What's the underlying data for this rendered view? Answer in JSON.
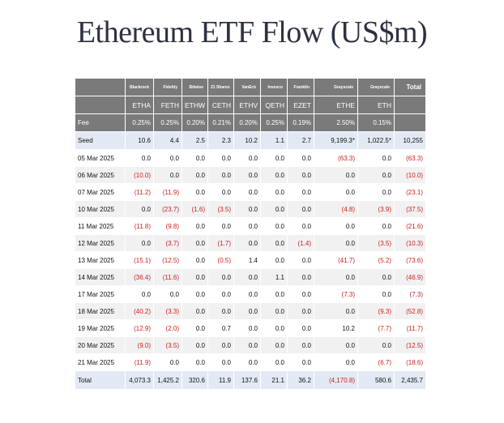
{
  "title": "Ethereum ETF Flow (US$m)",
  "issuers": [
    "Blackrock",
    "Fidelity",
    "Bitwise",
    "21 Shares",
    "VanEck",
    "Invesco",
    "Franklin",
    "Grayscale",
    "Grayscale"
  ],
  "total_label": "Total",
  "tickers": [
    "ETHA",
    "FETH",
    "ETHW",
    "CETH",
    "ETHV",
    "QETH",
    "EZET",
    "ETHE",
    "ETH"
  ],
  "fee_label": "Fee",
  "fees": [
    "0.25%",
    "0.25%",
    "0.20%",
    "0.21%",
    "0.20%",
    "0.25%",
    "0.19%",
    "2.50%",
    "0.15%"
  ],
  "seed": {
    "label": "Seed",
    "values": [
      "10.6",
      "4.4",
      "2.5",
      "2.3",
      "10.2",
      "1.1",
      "2.7",
      "9,199.3*",
      "1,022.5*",
      "10,255"
    ]
  },
  "rows": [
    {
      "date": "05 Mar 2025",
      "values": [
        "0.0",
        "0.0",
        "0.0",
        "0.0",
        "0.0",
        "0.0",
        "0.0",
        "(63.3)",
        "0.0",
        "(63.3)"
      ]
    },
    {
      "date": "06 Mar 2025",
      "values": [
        "(10.0)",
        "0.0",
        "0.0",
        "0.0",
        "0.0",
        "0.0",
        "0.0",
        "0.0",
        "0.0",
        "(10.0)"
      ]
    },
    {
      "date": "07 Mar 2025",
      "values": [
        "(11.2)",
        "(11.9)",
        "0.0",
        "0.0",
        "0.0",
        "0.0",
        "0.0",
        "0.0",
        "0.0",
        "(23.1)"
      ]
    },
    {
      "date": "10 Mar 2025",
      "values": [
        "0.0",
        "(23.7)",
        "(1.6)",
        "(3.5)",
        "0.0",
        "0.0",
        "0.0",
        "(4.8)",
        "(3.9)",
        "(37.5)"
      ]
    },
    {
      "date": "11 Mar 2025",
      "values": [
        "(11.8)",
        "(9.8)",
        "0.0",
        "0.0",
        "0.0",
        "0.0",
        "0.0",
        "0.0",
        "0.0",
        "(21.6)"
      ]
    },
    {
      "date": "12 Mar 2025",
      "values": [
        "0.0",
        "(3.7)",
        "0.0",
        "(1.7)",
        "0.0",
        "0.0",
        "(1.4)",
        "0.0",
        "(3.5)",
        "(10.3)"
      ]
    },
    {
      "date": "13 Mar 2025",
      "values": [
        "(15.1)",
        "(12.5)",
        "0.0",
        "(0.5)",
        "1.4",
        "0.0",
        "0.0",
        "(41.7)",
        "(5.2)",
        "(73.6)"
      ]
    },
    {
      "date": "14 Mar 2025",
      "values": [
        "(36.4)",
        "(11.6)",
        "0.0",
        "0.0",
        "0.0",
        "1.1",
        "0.0",
        "0.0",
        "0.0",
        "(46.9)"
      ]
    },
    {
      "date": "17 Mar 2025",
      "values": [
        "0.0",
        "0.0",
        "0.0",
        "0.0",
        "0.0",
        "0.0",
        "0.0",
        "(7.3)",
        "0.0",
        "(7.3)"
      ]
    },
    {
      "date": "18 Mar 2025",
      "values": [
        "(40.2)",
        "(3.3)",
        "0.0",
        "0.0",
        "0.0",
        "0.0",
        "0.0",
        "0.0",
        "(9.3)",
        "(52.8)"
      ]
    },
    {
      "date": "19 Mar 2025",
      "values": [
        "(12.9)",
        "(2.0)",
        "0.0",
        "0.7",
        "0.0",
        "0.0",
        "0.0",
        "10.2",
        "(7.7)",
        "(11.7)"
      ]
    },
    {
      "date": "20 Mar 2025",
      "values": [
        "(9.0)",
        "(3.5)",
        "0.0",
        "0.0",
        "0.0",
        "0.0",
        "0.0",
        "0.0",
        "0.0",
        "(12.5)"
      ]
    },
    {
      "date": "21 Mar 2025",
      "values": [
        "(11.9)",
        "0.0",
        "0.0",
        "0.0",
        "0.0",
        "0.0",
        "0.0",
        "0.0",
        "(6.7)",
        "(18.6)"
      ]
    }
  ],
  "total": {
    "label": "Total",
    "values": [
      "4,073.3",
      "1,425.2",
      "320.6",
      "11.9",
      "137.6",
      "21.1",
      "36.2",
      "(4,170.8)",
      "580.6",
      "2,435.7"
    ]
  },
  "colors": {
    "header_bg": "#7a7a7a",
    "negative": "#cc1f1f",
    "seed_total_bg": "#e3e9f4",
    "stripe_bg": "#f1f1f1",
    "title": "#2d3142"
  }
}
